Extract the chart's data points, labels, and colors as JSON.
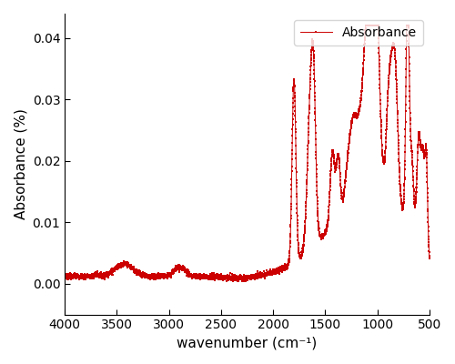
{
  "xlabel": "wavenumber (cm⁻¹)",
  "ylabel": "Absorbance (%)",
  "legend_label": "Absorbance",
  "line_color": "#CC0000",
  "marker": "s",
  "markersize": 2.0,
  "xlim": [
    4000,
    500
  ],
  "ylim": [
    -0.005,
    0.044
  ],
  "yticks": [
    0.0,
    0.01,
    0.02,
    0.03,
    0.04
  ],
  "xticks": [
    4000,
    3500,
    3000,
    2500,
    2000,
    1500,
    1000,
    500
  ],
  "figsize": [
    5.0,
    4.0
  ],
  "dpi": 100,
  "base_level": 0.0012,
  "noise_std": 0.00022
}
